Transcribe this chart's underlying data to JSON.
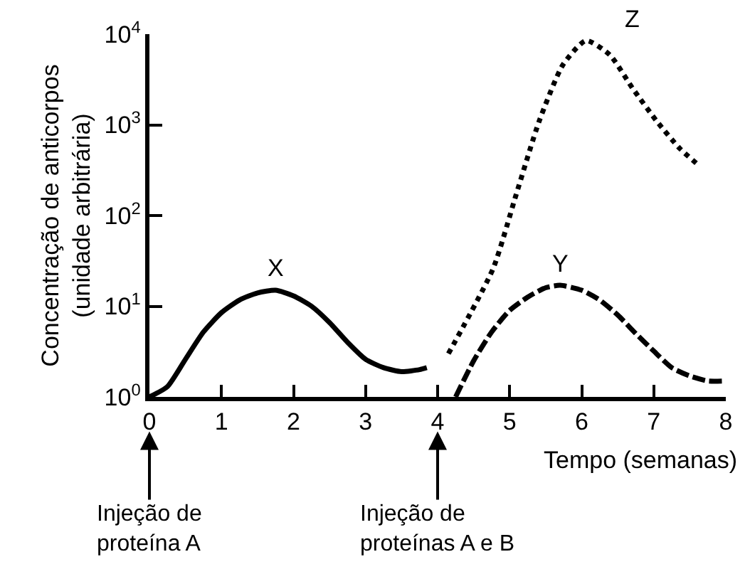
{
  "chart_data": {
    "type": "line",
    "xlabel": "Tempo (semanas)",
    "ylabel": "Concentração de anticorpos\n(unidade arbitrária)",
    "log": "y",
    "legend": false,
    "marker": "none",
    "xlim": [
      0,
      8
    ],
    "xticks": [
      0,
      1,
      2,
      3,
      4,
      5,
      6,
      7,
      8
    ],
    "ylim": [
      1,
      10000
    ],
    "yticks": [
      {
        "value": 1,
        "label": "10$^{0}$"
      },
      {
        "value": 10,
        "label": "10$^{1}$"
      },
      {
        "value": 100,
        "label": "10$^{2}$"
      },
      {
        "value": 1000,
        "label": "10$^{3}$"
      },
      {
        "value": 10000,
        "label": "10$^{4}$"
      }
    ],
    "series": [
      {
        "name": "X",
        "color": "#000000",
        "line_style": "solid",
        "x": [
          0,
          0.25,
          0.5,
          0.75,
          1.0,
          1.25,
          1.5,
          1.75,
          2.0,
          2.25,
          2.5,
          2.75,
          3.0,
          3.25,
          3.5,
          3.75,
          3.85
        ],
        "values": [
          1,
          1.3,
          2.6,
          5.2,
          8.5,
          11.7,
          14,
          15,
          13,
          10,
          6.6,
          4,
          2.6,
          2.1,
          1.9,
          2,
          2.1
        ]
      },
      {
        "name": "Y",
        "color": "#000000",
        "line_style": "dashed",
        "x": [
          4.25,
          4.5,
          4.75,
          5.0,
          5.25,
          5.5,
          5.7,
          6.0,
          6.25,
          6.5,
          6.75,
          7.0,
          7.25,
          7.5,
          7.75,
          8.0
        ],
        "values": [
          1,
          2.5,
          5.2,
          9,
          12.6,
          16,
          17,
          15,
          11.7,
          8,
          5,
          3.2,
          2.1,
          1.7,
          1.5,
          1.5
        ]
      },
      {
        "name": "Z",
        "color": "#000000",
        "line_style": "dotted",
        "x": [
          4.15,
          4.77,
          5.09,
          5.41,
          5.74,
          6.06,
          6.39,
          6.71,
          7.04,
          7.36,
          7.62
        ],
        "values": [
          3,
          26,
          170,
          1100,
          4600,
          8500,
          5900,
          2500,
          1100,
          550,
          360
        ]
      }
    ],
    "ref_lines": [
      {
        "axis": "x",
        "value": 0,
        "label": "Injeção de\nproteína A"
      },
      {
        "axis": "x",
        "value": 4,
        "label": "Injeção de\nproteínas A e B"
      }
    ]
  }
}
